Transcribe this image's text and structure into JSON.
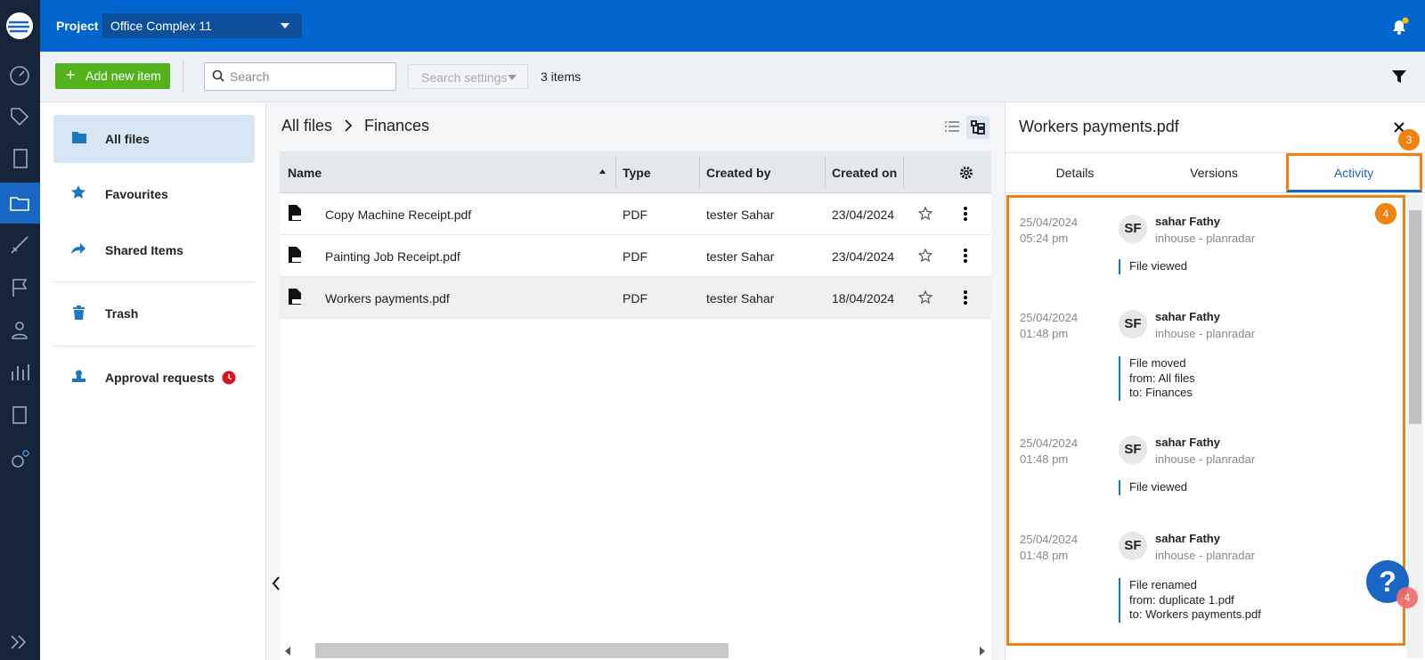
{
  "header": {
    "project_label": "Project",
    "project_name": "Office Complex 11"
  },
  "toolbar": {
    "add_button": "Add new item",
    "search_placeholder": "Search",
    "search_settings": "Search settings",
    "items_count": "3 items"
  },
  "sidebar": {
    "items": [
      "All files",
      "Favourites",
      "Shared Items",
      "Trash",
      "Approval requests"
    ]
  },
  "breadcrumb": [
    "All files",
    "Finances"
  ],
  "table": {
    "columns": [
      "Name",
      "Type",
      "Created by",
      "Created on"
    ],
    "rows": [
      [
        "Copy Machine Receipt.pdf",
        "PDF",
        "tester Sahar",
        "23/04/2024"
      ],
      [
        "Painting Job Receipt.pdf",
        "PDF",
        "tester Sahar",
        "23/04/2024"
      ],
      [
        "Workers payments.pdf",
        "PDF",
        "tester Sahar",
        "18/04/2024"
      ]
    ]
  },
  "panel": {
    "title": "Workers payments.pdf",
    "tabs": [
      "Details",
      "Versions",
      "Activity"
    ],
    "activity": [
      {
        "date": "25/04/2024",
        "time": "05:24 pm",
        "avatar": "SF",
        "user": "sahar Fathy",
        "org": "inhouse - planradar",
        "lines": [
          "File viewed"
        ]
      },
      {
        "date": "25/04/2024",
        "time": "01:48 pm",
        "avatar": "SF",
        "user": "sahar Fathy",
        "org": "inhouse - planradar",
        "lines": [
          "File moved",
          "from: All files",
          "to: Finances"
        ]
      },
      {
        "date": "25/04/2024",
        "time": "01:48 pm",
        "avatar": "SF",
        "user": "sahar Fathy",
        "org": "inhouse - planradar",
        "lines": [
          "File viewed"
        ]
      },
      {
        "date": "25/04/2024",
        "time": "01:48 pm",
        "avatar": "SF",
        "user": "sahar Fathy",
        "org": "inhouse - planradar",
        "lines": [
          "File renamed",
          "from: duplicate 1.pdf",
          "to: Workers payments.pdf"
        ]
      }
    ]
  },
  "badges": {
    "tab": "3",
    "list": "4",
    "help": "4"
  }
}
